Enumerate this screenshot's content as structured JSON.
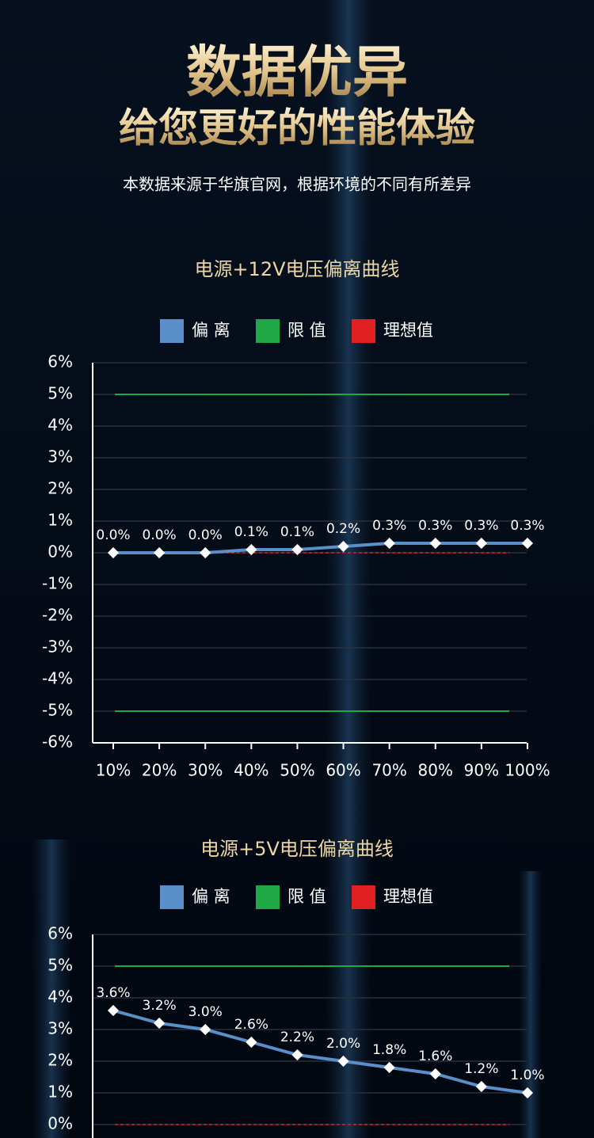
{
  "header": {
    "title": "数据优异",
    "subtitle": "给您更好的性能体验",
    "note": "本数据来源于华旗官网，根据环境的不同有所差异"
  },
  "chart_data": [
    {
      "type": "line",
      "title": "电源+12V电压偏离曲线",
      "categories": [
        "10%",
        "20%",
        "30%",
        "40%",
        "50%",
        "60%",
        "70%",
        "80%",
        "90%",
        "100%"
      ],
      "series": [
        {
          "name": "偏 离",
          "color": "#5b8fc9",
          "values": [
            0,
            0,
            0,
            0.1,
            0.1,
            0.2,
            0.3,
            0.3,
            0.3,
            0.3
          ],
          "value_labels": [
            "0.0%",
            "0.0%",
            "0.0%",
            "0.1%",
            "0.1%",
            "0.2%",
            "0.3%",
            "0.3%",
            "0.3%",
            "0.3%"
          ]
        }
      ],
      "limit": {
        "name": "限 值",
        "color": "#1fa843",
        "values": [
          5,
          -5
        ]
      },
      "ideal": {
        "name": "理想值",
        "color": "#e02020",
        "value": 0
      },
      "ylim": [
        -6,
        6
      ],
      "yticks": [
        {
          "value": 6,
          "label": "6%"
        },
        {
          "value": 5,
          "label": "5%"
        },
        {
          "value": 4,
          "label": "4%"
        },
        {
          "value": 3,
          "label": "3%"
        },
        {
          "value": 2,
          "label": "2%"
        },
        {
          "value": 1,
          "label": "1%"
        },
        {
          "value": 0,
          "label": "0%"
        },
        {
          "value": -1,
          "label": "-1%"
        },
        {
          "value": -2,
          "label": "-2%"
        },
        {
          "value": -3,
          "label": "-3%"
        },
        {
          "value": -4,
          "label": "-4%"
        },
        {
          "value": -5,
          "label": "-5%"
        },
        {
          "value": -6,
          "label": "-6%"
        }
      ],
      "grid": true
    },
    {
      "type": "line",
      "title": "电源+5V电压偏离曲线",
      "series": [
        {
          "name": "偏 离",
          "color": "#5b8fc9",
          "values": [
            3.6,
            3.2,
            3.0,
            2.6,
            2.2,
            2.0,
            1.8,
            1.6,
            1.2,
            1.0
          ],
          "value_labels": [
            "3.6%",
            "3.2%",
            "3.0%",
            "2.6%",
            "2.2%",
            "2.0%",
            "1.8%",
            "1.6%",
            "1.2%",
            "1.0%"
          ]
        }
      ],
      "limit": {
        "name": "限 值",
        "color": "#1fa843",
        "values": [
          5
        ]
      },
      "ideal": {
        "name": "理想值",
        "color": "#e02020",
        "value": 0
      },
      "ylim": [
        0,
        6
      ],
      "yticks": [
        {
          "value": 6,
          "label": "6%"
        },
        {
          "value": 5,
          "label": "5%"
        },
        {
          "value": 4,
          "label": "4%"
        },
        {
          "value": 3,
          "label": "3%"
        },
        {
          "value": 2,
          "label": "2%"
        },
        {
          "value": 1,
          "label": "1%"
        },
        {
          "value": 0,
          "label": "0%"
        }
      ],
      "grid": true
    }
  ]
}
